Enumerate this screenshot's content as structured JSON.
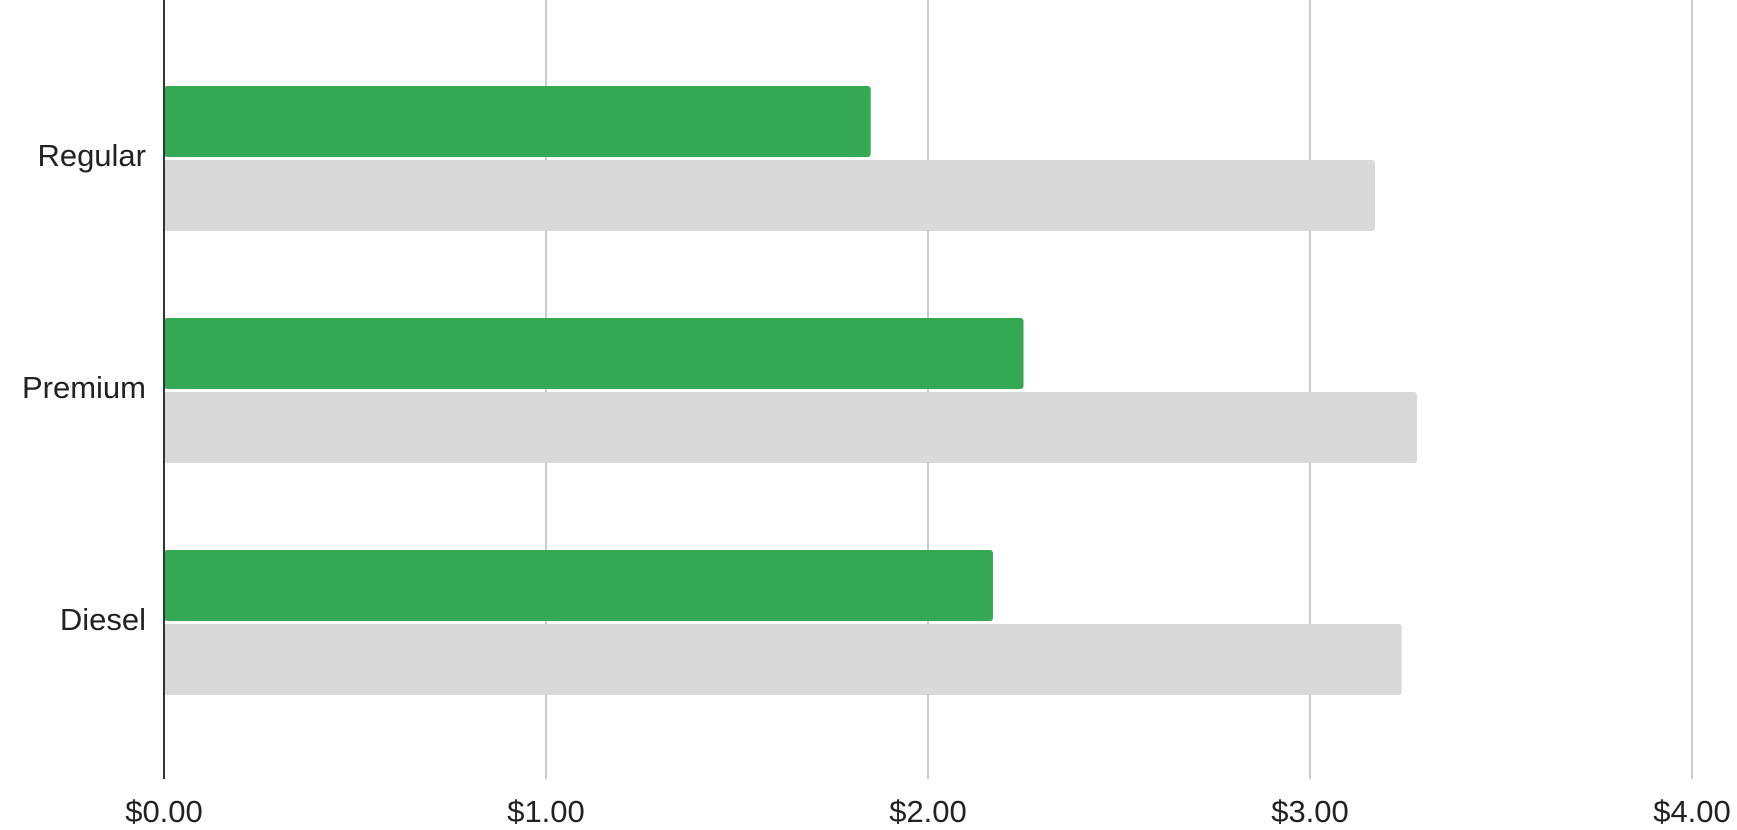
{
  "chart_data": {
    "type": "bar",
    "orientation": "horizontal",
    "categories": [
      "Regular",
      "Premium",
      "Diesel"
    ],
    "series": [
      {
        "color": "#34a853",
        "values": [
          1.85,
          2.25,
          2.17
        ]
      },
      {
        "color": "#d9d9d9",
        "values": [
          3.17,
          3.28,
          3.24
        ]
      }
    ],
    "xlim": [
      0,
      4
    ],
    "xticks": [
      {
        "value": 0,
        "label": "$0.00"
      },
      {
        "value": 1,
        "label": "$1.00"
      },
      {
        "value": 2,
        "label": "$2.00"
      },
      {
        "value": 3,
        "label": "$3.00"
      },
      {
        "value": 4,
        "label": "$4.00"
      }
    ],
    "grid": true
  }
}
